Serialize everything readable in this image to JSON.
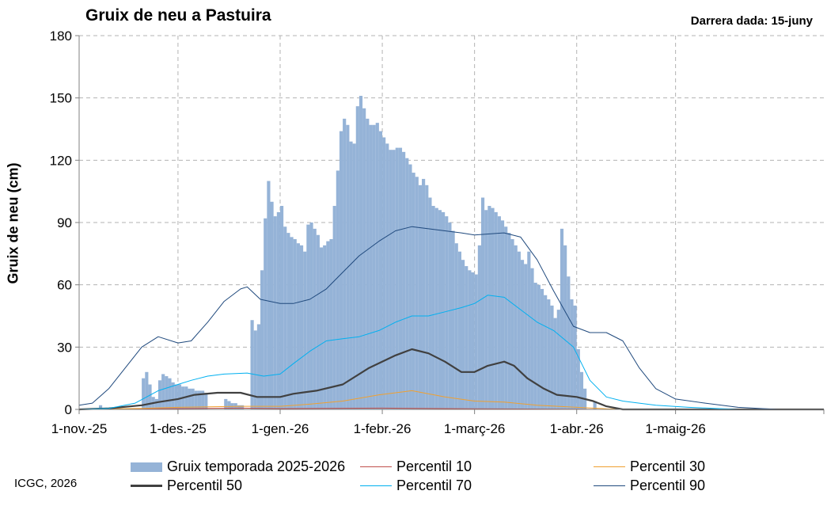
{
  "header": {
    "title": "Gruix de neu a Pastuira",
    "last_date_label": "Darrera dada:  15-juny"
  },
  "footer": {
    "credit": "ICGC,  2026"
  },
  "colors": {
    "bars": "#95b3d7",
    "p10": "#c0504d",
    "p30": "#f0a030",
    "p50": "#404040",
    "p70": "#00b0f0",
    "p90": "#1f497d",
    "grid": "#b3b3b3",
    "axis": "#808080"
  },
  "chart_data": {
    "type": "bar",
    "title": "Gruix de neu a Pastuira",
    "xlabel": "",
    "ylabel": "Gruix de neu (cm)",
    "ylim": [
      0,
      180
    ],
    "yticks": [
      0,
      30,
      60,
      90,
      120,
      150,
      180
    ],
    "x_start": "2025-11-01",
    "x_end": "2026-06-15",
    "x_ticks": [
      {
        "date": "2025-11-01",
        "label": "1-nov.-25"
      },
      {
        "date": "2025-12-01",
        "label": "1-des.-25"
      },
      {
        "date": "2026-01-01",
        "label": "1-gen.-26"
      },
      {
        "date": "2026-02-01",
        "label": "1-febr.-26"
      },
      {
        "date": "2026-03-01",
        "label": "1-març-26"
      },
      {
        "date": "2026-04-01",
        "label": "1-abr.-26"
      },
      {
        "date": "2026-05-01",
        "label": "1-maig-26"
      }
    ],
    "grid": true,
    "legend_position": "bottom",
    "series": [
      {
        "name": "Gruix temporada 2025-2026",
        "kind": "bar",
        "color_key": "bars",
        "points": [
          [
            "2025-11-07",
            2
          ],
          [
            "2025-11-20",
            15
          ],
          [
            "2025-11-21",
            18
          ],
          [
            "2025-11-22",
            12
          ],
          [
            "2025-11-23",
            6
          ],
          [
            "2025-11-24",
            5
          ],
          [
            "2025-11-25",
            14
          ],
          [
            "2025-11-26",
            17
          ],
          [
            "2025-11-27",
            16
          ],
          [
            "2025-11-28",
            15
          ],
          [
            "2025-11-29",
            13
          ],
          [
            "2025-11-30",
            12
          ],
          [
            "2025-12-01",
            12
          ],
          [
            "2025-12-02",
            11
          ],
          [
            "2025-12-03",
            11
          ],
          [
            "2025-12-04",
            10
          ],
          [
            "2025-12-05",
            10
          ],
          [
            "2025-12-06",
            9
          ],
          [
            "2025-12-07",
            9
          ],
          [
            "2025-12-08",
            9
          ],
          [
            "2025-12-09",
            8
          ],
          [
            "2025-12-15",
            5
          ],
          [
            "2025-12-16",
            4
          ],
          [
            "2025-12-17",
            3
          ],
          [
            "2025-12-18",
            3
          ],
          [
            "2025-12-19",
            2
          ],
          [
            "2025-12-20",
            2
          ],
          [
            "2025-12-23",
            43
          ],
          [
            "2025-12-24",
            38
          ],
          [
            "2025-12-25",
            41
          ],
          [
            "2025-12-26",
            67
          ],
          [
            "2025-12-27",
            92
          ],
          [
            "2025-12-28",
            110
          ],
          [
            "2025-12-29",
            100
          ],
          [
            "2025-12-30",
            93
          ],
          [
            "2025-12-31",
            95
          ],
          [
            "2026-01-01",
            98
          ],
          [
            "2026-01-02",
            88
          ],
          [
            "2026-01-03",
            85
          ],
          [
            "2026-01-04",
            83
          ],
          [
            "2026-01-05",
            82
          ],
          [
            "2026-01-06",
            80
          ],
          [
            "2026-01-07",
            79
          ],
          [
            "2026-01-08",
            76
          ],
          [
            "2026-01-09",
            89
          ],
          [
            "2026-01-10",
            90
          ],
          [
            "2026-01-11",
            87
          ],
          [
            "2026-01-12",
            84
          ],
          [
            "2026-01-13",
            78
          ],
          [
            "2026-01-14",
            79
          ],
          [
            "2026-01-15",
            81
          ],
          [
            "2026-01-16",
            82
          ],
          [
            "2026-01-17",
            98
          ],
          [
            "2026-01-18",
            115
          ],
          [
            "2026-01-19",
            134
          ],
          [
            "2026-01-20",
            140
          ],
          [
            "2026-01-21",
            137
          ],
          [
            "2026-01-22",
            129
          ],
          [
            "2026-01-23",
            128
          ],
          [
            "2026-01-24",
            146
          ],
          [
            "2026-01-25",
            151
          ],
          [
            "2026-01-26",
            145
          ],
          [
            "2026-01-27",
            140
          ],
          [
            "2026-01-28",
            137
          ],
          [
            "2026-01-29",
            137
          ],
          [
            "2026-01-30",
            138
          ],
          [
            "2026-01-31",
            134
          ],
          [
            "2026-02-01",
            131
          ],
          [
            "2026-02-02",
            128
          ],
          [
            "2026-02-03",
            125
          ],
          [
            "2026-02-04",
            125
          ],
          [
            "2026-02-05",
            126
          ],
          [
            "2026-02-06",
            126
          ],
          [
            "2026-02-07",
            124
          ],
          [
            "2026-02-08",
            121
          ],
          [
            "2026-02-09",
            118
          ],
          [
            "2026-02-10",
            114
          ],
          [
            "2026-02-11",
            112
          ],
          [
            "2026-02-12",
            108
          ],
          [
            "2026-02-13",
            111
          ],
          [
            "2026-02-14",
            108
          ],
          [
            "2026-02-15",
            102
          ],
          [
            "2026-02-16",
            98
          ],
          [
            "2026-02-17",
            97
          ],
          [
            "2026-02-18",
            96
          ],
          [
            "2026-02-19",
            95
          ],
          [
            "2026-02-20",
            93
          ],
          [
            "2026-02-21",
            90
          ],
          [
            "2026-02-22",
            86
          ],
          [
            "2026-02-23",
            80
          ],
          [
            "2026-02-24",
            76
          ],
          [
            "2026-02-25",
            72
          ],
          [
            "2026-02-26",
            69
          ],
          [
            "2026-02-27",
            67
          ],
          [
            "2026-02-28",
            66
          ],
          [
            "2026-03-01",
            65
          ],
          [
            "2026-03-02",
            79
          ],
          [
            "2026-03-03",
            102
          ],
          [
            "2026-03-04",
            96
          ],
          [
            "2026-03-05",
            98
          ],
          [
            "2026-03-06",
            97
          ],
          [
            "2026-03-07",
            95
          ],
          [
            "2026-03-08",
            93
          ],
          [
            "2026-03-09",
            91
          ],
          [
            "2026-03-10",
            88
          ],
          [
            "2026-03-11",
            85
          ],
          [
            "2026-03-12",
            82
          ],
          [
            "2026-03-13",
            79
          ],
          [
            "2026-03-14",
            76
          ],
          [
            "2026-03-15",
            72
          ],
          [
            "2026-03-16",
            70
          ],
          [
            "2026-03-17",
            76
          ],
          [
            "2026-03-18",
            68
          ],
          [
            "2026-03-19",
            61
          ],
          [
            "2026-03-20",
            60
          ],
          [
            "2026-03-21",
            58
          ],
          [
            "2026-03-22",
            55
          ],
          [
            "2026-03-23",
            53
          ],
          [
            "2026-03-24",
            50
          ],
          [
            "2026-03-25",
            44
          ],
          [
            "2026-03-26",
            48
          ],
          [
            "2026-03-27",
            87
          ],
          [
            "2026-03-28",
            79
          ],
          [
            "2026-03-29",
            64
          ],
          [
            "2026-03-30",
            53
          ],
          [
            "2026-03-31",
            50
          ],
          [
            "2026-04-01",
            29
          ],
          [
            "2026-04-02",
            18
          ],
          [
            "2026-04-03",
            10
          ],
          [
            "2026-04-06",
            4
          ]
        ]
      },
      {
        "name": "Percentil 10",
        "kind": "line",
        "color_key": "p10",
        "width": 1,
        "points": [
          [
            "2025-11-01",
            0
          ],
          [
            "2025-12-01",
            0.4
          ],
          [
            "2025-12-20",
            0.6
          ],
          [
            "2026-01-01",
            0.4
          ],
          [
            "2026-02-01",
            0.6
          ],
          [
            "2026-03-01",
            0.3
          ],
          [
            "2026-04-01",
            0.1
          ],
          [
            "2026-04-10",
            0
          ],
          [
            "2026-06-15",
            0
          ]
        ]
      },
      {
        "name": "Percentil 30",
        "kind": "line",
        "color_key": "p30",
        "width": 1,
        "points": [
          [
            "2025-11-01",
            0
          ],
          [
            "2025-11-20",
            0.5
          ],
          [
            "2025-12-01",
            1
          ],
          [
            "2025-12-20",
            1.5
          ],
          [
            "2026-01-01",
            1.5
          ],
          [
            "2026-01-10",
            2.5
          ],
          [
            "2026-01-20",
            4
          ],
          [
            "2026-01-31",
            7
          ],
          [
            "2026-02-10",
            9
          ],
          [
            "2026-02-20",
            6
          ],
          [
            "2026-03-01",
            4
          ],
          [
            "2026-03-10",
            3.5
          ],
          [
            "2026-03-20",
            2
          ],
          [
            "2026-04-01",
            1
          ],
          [
            "2026-04-10",
            0.3
          ],
          [
            "2026-04-20",
            0
          ],
          [
            "2026-06-15",
            0
          ]
        ]
      },
      {
        "name": "Percentil 50",
        "kind": "line",
        "color_key": "p50",
        "width": 2.2,
        "points": [
          [
            "2025-11-01",
            0
          ],
          [
            "2025-11-10",
            0.5
          ],
          [
            "2025-11-20",
            2
          ],
          [
            "2025-11-25",
            3.5
          ],
          [
            "2025-12-01",
            5
          ],
          [
            "2025-12-06",
            7
          ],
          [
            "2025-12-13",
            8
          ],
          [
            "2025-12-20",
            8
          ],
          [
            "2025-12-25",
            6
          ],
          [
            "2026-01-01",
            6
          ],
          [
            "2026-01-05",
            7.5
          ],
          [
            "2026-01-12",
            9
          ],
          [
            "2026-01-20",
            12
          ],
          [
            "2026-01-28",
            20
          ],
          [
            "2026-02-05",
            26
          ],
          [
            "2026-02-10",
            29
          ],
          [
            "2026-02-15",
            27
          ],
          [
            "2026-02-20",
            23
          ],
          [
            "2026-02-25",
            18
          ],
          [
            "2026-03-01",
            18
          ],
          [
            "2026-03-05",
            21
          ],
          [
            "2026-03-10",
            23
          ],
          [
            "2026-03-13",
            21
          ],
          [
            "2026-03-17",
            15
          ],
          [
            "2026-03-22",
            10
          ],
          [
            "2026-03-26",
            7
          ],
          [
            "2026-04-01",
            6
          ],
          [
            "2026-04-06",
            4
          ],
          [
            "2026-04-10",
            1.5
          ],
          [
            "2026-04-15",
            0
          ],
          [
            "2026-06-15",
            0
          ]
        ]
      },
      {
        "name": "Percentil 70",
        "kind": "line",
        "color_key": "p70",
        "width": 1,
        "points": [
          [
            "2025-11-01",
            0
          ],
          [
            "2025-11-10",
            0.5
          ],
          [
            "2025-11-18",
            3
          ],
          [
            "2025-11-25",
            9
          ],
          [
            "2025-12-01",
            12
          ],
          [
            "2025-12-05",
            14
          ],
          [
            "2025-12-10",
            16
          ],
          [
            "2025-12-15",
            17
          ],
          [
            "2025-12-22",
            17.5
          ],
          [
            "2025-12-27",
            16
          ],
          [
            "2026-01-01",
            17
          ],
          [
            "2026-01-05",
            22
          ],
          [
            "2026-01-10",
            28
          ],
          [
            "2026-01-15",
            33
          ],
          [
            "2026-01-20",
            34
          ],
          [
            "2026-01-25",
            35
          ],
          [
            "2026-01-31",
            38
          ],
          [
            "2026-02-05",
            42
          ],
          [
            "2026-02-10",
            45
          ],
          [
            "2026-02-15",
            45
          ],
          [
            "2026-02-20",
            47
          ],
          [
            "2026-02-25",
            49
          ],
          [
            "2026-03-01",
            51
          ],
          [
            "2026-03-05",
            55
          ],
          [
            "2026-03-10",
            54
          ],
          [
            "2026-03-15",
            48
          ],
          [
            "2026-03-20",
            42
          ],
          [
            "2026-03-25",
            38
          ],
          [
            "2026-03-31",
            30
          ],
          [
            "2026-04-05",
            14
          ],
          [
            "2026-04-10",
            6
          ],
          [
            "2026-04-15",
            4
          ],
          [
            "2026-04-25",
            2
          ],
          [
            "2026-05-05",
            1
          ],
          [
            "2026-05-20",
            0
          ],
          [
            "2026-06-15",
            0
          ]
        ]
      },
      {
        "name": "Percentil 90",
        "kind": "line",
        "color_key": "p90",
        "width": 1,
        "points": [
          [
            "2025-11-01",
            2
          ],
          [
            "2025-11-05",
            3
          ],
          [
            "2025-11-10",
            10
          ],
          [
            "2025-11-15",
            20
          ],
          [
            "2025-11-20",
            30
          ],
          [
            "2025-11-25",
            35
          ],
          [
            "2025-12-01",
            32
          ],
          [
            "2025-12-05",
            33
          ],
          [
            "2025-12-10",
            42
          ],
          [
            "2025-12-15",
            52
          ],
          [
            "2025-12-20",
            58
          ],
          [
            "2025-12-22",
            59
          ],
          [
            "2025-12-26",
            53
          ],
          [
            "2026-01-01",
            51
          ],
          [
            "2026-01-05",
            51
          ],
          [
            "2026-01-10",
            53
          ],
          [
            "2026-01-15",
            58
          ],
          [
            "2026-01-20",
            66
          ],
          [
            "2026-01-25",
            74
          ],
          [
            "2026-01-31",
            81
          ],
          [
            "2026-02-05",
            86
          ],
          [
            "2026-02-10",
            88
          ],
          [
            "2026-02-15",
            87
          ],
          [
            "2026-02-20",
            86
          ],
          [
            "2026-02-25",
            85
          ],
          [
            "2026-03-01",
            84
          ],
          [
            "2026-03-10",
            85
          ],
          [
            "2026-03-15",
            83
          ],
          [
            "2026-03-20",
            72
          ],
          [
            "2026-03-25",
            57
          ],
          [
            "2026-03-31",
            40
          ],
          [
            "2026-04-05",
            37
          ],
          [
            "2026-04-10",
            37
          ],
          [
            "2026-04-15",
            33
          ],
          [
            "2026-04-20",
            20
          ],
          [
            "2026-04-25",
            10
          ],
          [
            "2026-05-01",
            5
          ],
          [
            "2026-05-10",
            3
          ],
          [
            "2026-05-20",
            1
          ],
          [
            "2026-06-01",
            0
          ],
          [
            "2026-06-15",
            0
          ]
        ]
      }
    ]
  }
}
